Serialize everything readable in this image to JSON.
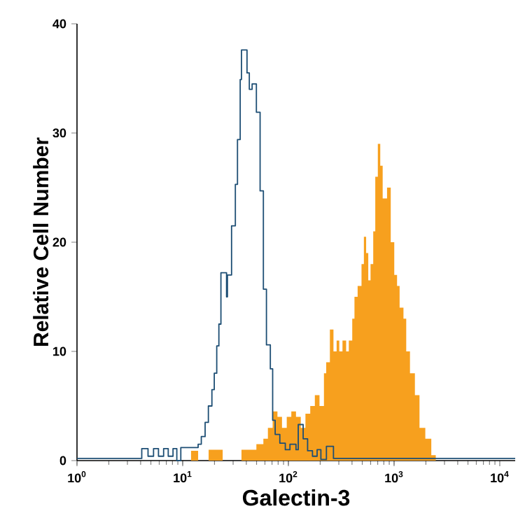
{
  "chart_data": {
    "type": "step",
    "xlabel": "Galectin-3",
    "ylabel": "Relative Cell Number",
    "log": "x",
    "xlim": [
      1,
      14000
    ],
    "ylim": [
      0,
      40
    ],
    "xticks": [
      {
        "value": 1,
        "label": "10$^{0}$"
      },
      {
        "value": 10,
        "label": "10$^{1}$"
      },
      {
        "value": 100,
        "label": "10$^{2}$"
      },
      {
        "value": 1000,
        "label": "10$^{3}$"
      },
      {
        "value": 10000,
        "label": "10$^{4}$"
      }
    ],
    "yticks": [
      0,
      10,
      20,
      30,
      40
    ],
    "grid": false,
    "series": [
      {
        "type": "area",
        "color": "#f7a01e",
        "x": [
          1,
          12,
          14,
          17.6,
          23.9,
          36,
          49.8,
          58,
          64,
          71,
          78.8,
          87,
          96.5,
          106.6,
          118,
          131,
          145,
          161,
          178,
          197,
          217,
          228,
          247,
          267,
          286,
          303,
          325,
          352,
          373,
          402,
          422,
          452,
          492,
          518,
          544,
          570,
          599,
          635,
          664,
          702,
          740,
          780,
          858,
          930,
          1004,
          1067,
          1128,
          1227,
          1303,
          1414,
          1574,
          1740,
          1975,
          2250,
          2480,
          14000
        ],
        "values": [
          0,
          0.9,
          0,
          1,
          0,
          1,
          1.5,
          2,
          3,
          4.5,
          4,
          3,
          4,
          4.5,
          4,
          3,
          4.3,
          5,
          6,
          5,
          8,
          9,
          12,
          10,
          11,
          10,
          11,
          10,
          11,
          13,
          15,
          16,
          18,
          20.5,
          19,
          16.5,
          18,
          21,
          26,
          29,
          27,
          24,
          25,
          20,
          17,
          16,
          14,
          13,
          10,
          8,
          6,
          3,
          2,
          0.5,
          0,
          0
        ]
      },
      {
        "color": "#1d4e74",
        "x": [
          1,
          4.1,
          4.7,
          5.3,
          5.9,
          6.6,
          7.3,
          8.1,
          8.8,
          9.6,
          14,
          15,
          16.3,
          17.5,
          18.9,
          19.9,
          21,
          22,
          23,
          26,
          26.5,
          27.3,
          29,
          31.5,
          33,
          35,
          36,
          40.6,
          42.7,
          45.4,
          49.8,
          54,
          58,
          62,
          67.5,
          71,
          75,
          83,
          93.5,
          103.5,
          118,
          124,
          138,
          152,
          169,
          187,
          203,
          229,
          267,
          14000
        ],
        "values": [
          0.2,
          1.1,
          0.4,
          1.1,
          0.4,
          1.1,
          0.4,
          1.1,
          0,
          1.2,
          1.5,
          2.2,
          3.5,
          5,
          6.5,
          8,
          10.5,
          12.5,
          17.2,
          15,
          17,
          17,
          21.5,
          25.3,
          29.4,
          34.9,
          37.6,
          35.5,
          34,
          34.5,
          31.9,
          24.7,
          15.7,
          10.6,
          8.4,
          3.7,
          2.4,
          1.6,
          1,
          1.5,
          1,
          3.3,
          2,
          0.9,
          0.4,
          1,
          0.1,
          1.3,
          0.2,
          0.2
        ]
      }
    ]
  }
}
